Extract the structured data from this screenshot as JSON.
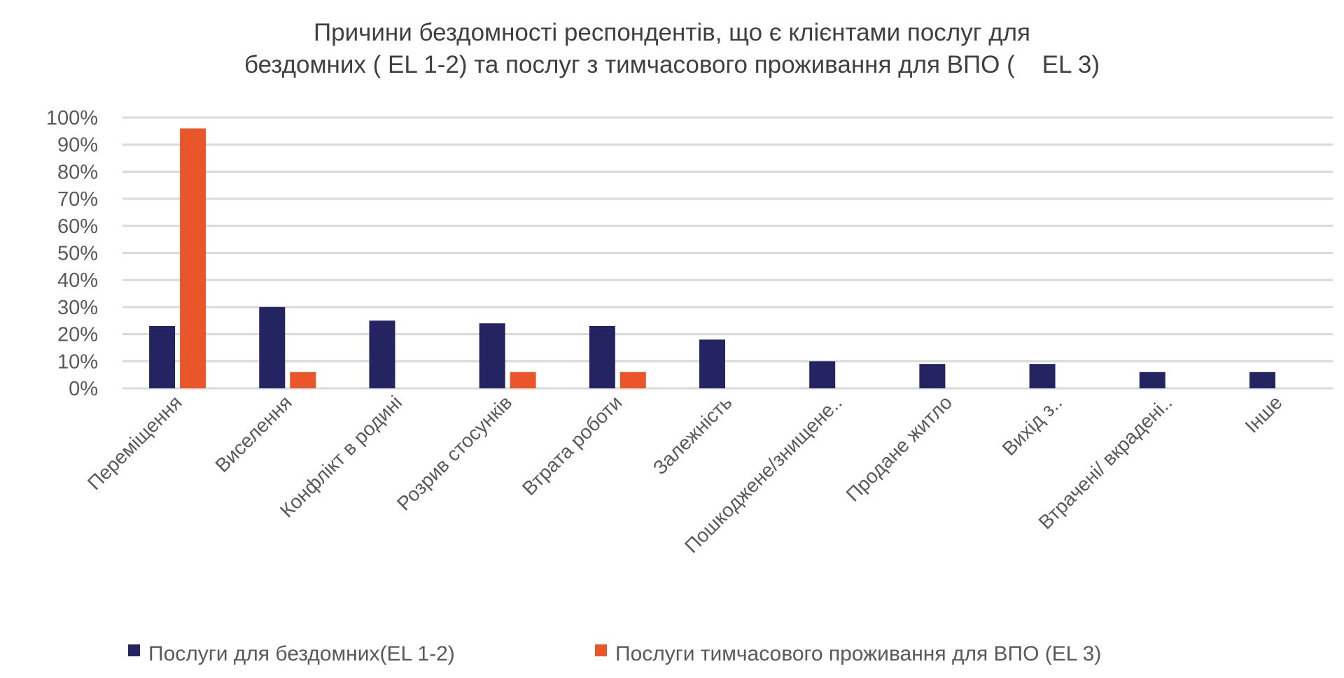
{
  "chart_data": {
    "type": "bar",
    "title": [
      "Причини бездомності респондентів, що є клієнтами послуг для",
      "бездомних ( EL 1-2) та послуг з тимчасового проживання для ВПО (    EL 3)"
    ],
    "xlabel": "",
    "ylabel": "",
    "ylim": [
      0,
      100
    ],
    "yticks": [
      "0%",
      "10%",
      "20%",
      "30%",
      "40%",
      "50%",
      "60%",
      "70%",
      "80%",
      "90%",
      "100%"
    ],
    "grid": true,
    "legend_position": "bottom",
    "categories": [
      "Переміщення",
      "Виселення",
      "Конфлікт в родині",
      "Розрив стосунків",
      "Втрата роботи",
      "Залежність",
      "Пошкоджене/знищене..",
      "Продане житло",
      "Вихід з..",
      "Втрачені/ вкрадені..",
      "Інше"
    ],
    "series": [
      {
        "name": "Послуги для бездомних(EL 1-2)",
        "color": "#232461",
        "values": [
          23,
          30,
          25,
          24,
          23,
          18,
          10,
          9,
          9,
          6,
          6
        ]
      },
      {
        "name": "Послуги тимчасового проживання для ВПО (EL 3)",
        "color": "#E8562A",
        "values": [
          96,
          6,
          0,
          6,
          6,
          0,
          0,
          0,
          0,
          0,
          0
        ]
      }
    ]
  }
}
